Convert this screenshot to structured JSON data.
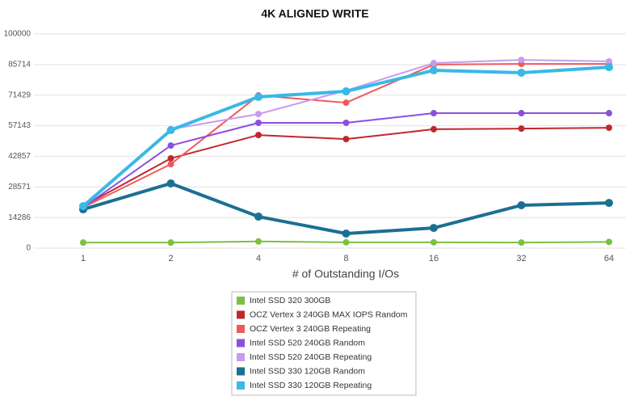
{
  "chart_data": {
    "type": "line",
    "title": "4K ALIGNED WRITE",
    "x_label": "# of Outstanding I/Os",
    "categories": [
      "1",
      "2",
      "4",
      "8",
      "16",
      "32",
      "64"
    ],
    "ylim": [
      0,
      100000
    ],
    "yticks": [
      0,
      14286,
      28571,
      42857,
      57143,
      71429,
      85714,
      100000
    ],
    "grid": true,
    "legend": "bottom",
    "series": [
      {
        "name": "Intel SSD 320 300GB",
        "color": "#7ac143",
        "values": [
          2600,
          2600,
          3100,
          2700,
          2700,
          2600,
          2900
        ]
      },
      {
        "name": "OCZ Vertex 3 240GB MAX IOPS Random",
        "color": "#c0282d",
        "values": [
          19600,
          41900,
          52800,
          50900,
          55500,
          55800,
          56200
        ]
      },
      {
        "name": "OCZ Vertex 3 240GB Repeating",
        "color": "#ee5a5a",
        "values": [
          19000,
          39200,
          71300,
          67900,
          85700,
          86000,
          86000
        ]
      },
      {
        "name": "Intel SSD 520 240GB Random",
        "color": "#8b4fe0",
        "values": [
          19000,
          47900,
          58500,
          58500,
          63000,
          63000,
          63000
        ]
      },
      {
        "name": "Intel SSD 520 240GB Repeating",
        "color": "#c89cf0",
        "values": [
          19500,
          55500,
          62600,
          73600,
          86400,
          87900,
          87200
        ]
      },
      {
        "name": "Intel SSD 330 120GB Random",
        "color": "#1b6f93",
        "values": [
          18100,
          30200,
          14700,
          6800,
          9400,
          20000,
          21100
        ]
      },
      {
        "name": "Intel SSD 330 120GB Repeating",
        "color": "#3ab8e6",
        "values": [
          19600,
          55100,
          70600,
          73200,
          83000,
          81900,
          84500
        ]
      }
    ]
  }
}
